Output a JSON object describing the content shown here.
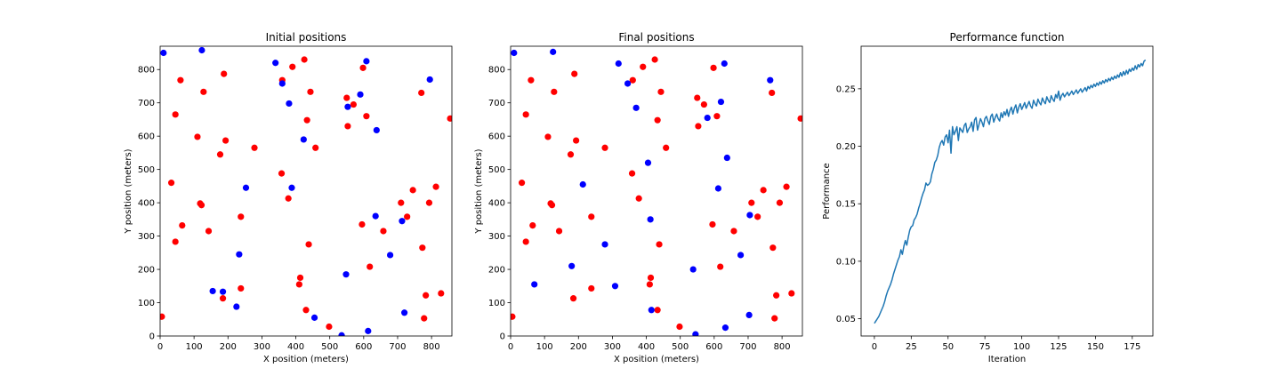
{
  "chart_data": [
    {
      "type": "scatter",
      "title": "Initial positions",
      "xlabel": "X position (meters)",
      "ylabel": "Y position (meters)",
      "xlim": [
        0,
        860
      ],
      "ylim": [
        0,
        870
      ],
      "xticks": [
        0,
        100,
        200,
        300,
        400,
        500,
        600,
        700,
        800
      ],
      "yticks": [
        0,
        100,
        200,
        300,
        400,
        500,
        600,
        700,
        800
      ],
      "grid": false,
      "series": [
        {
          "color": "#ff0000",
          "points": [
            [
              5,
              58
            ],
            [
              33,
              460
            ],
            [
              45,
              283
            ],
            [
              45,
              665
            ],
            [
              60,
              768
            ],
            [
              65,
              332
            ],
            [
              110,
              598
            ],
            [
              118,
              398
            ],
            [
              122,
              393
            ],
            [
              128,
              733
            ],
            [
              143,
              315
            ],
            [
              177,
              545
            ],
            [
              185,
              113
            ],
            [
              188,
              787
            ],
            [
              193,
              587
            ],
            [
              238,
              358
            ],
            [
              238,
              143
            ],
            [
              278,
              565
            ],
            [
              358,
              488
            ],
            [
              360,
              768
            ],
            [
              378,
              413
            ],
            [
              390,
              808
            ],
            [
              410,
              155
            ],
            [
              413,
              175
            ],
            [
              425,
              830
            ],
            [
              430,
              78
            ],
            [
              433,
              648
            ],
            [
              438,
              275
            ],
            [
              443,
              733
            ],
            [
              458,
              565
            ],
            [
              498,
              28
            ],
            [
              550,
              715
            ],
            [
              553,
              630
            ],
            [
              570,
              695
            ],
            [
              595,
              335
            ],
            [
              598,
              805
            ],
            [
              608,
              660
            ],
            [
              618,
              208
            ],
            [
              658,
              315
            ],
            [
              710,
              400
            ],
            [
              728,
              358
            ],
            [
              745,
              438
            ],
            [
              770,
              730
            ],
            [
              773,
              265
            ],
            [
              778,
              53
            ],
            [
              783,
              122
            ],
            [
              793,
              400
            ],
            [
              813,
              448
            ],
            [
              828,
              128
            ],
            [
              855,
              653
            ]
          ]
        },
        {
          "color": "#0000ff",
          "points": [
            [
              10,
              850
            ],
            [
              123,
              858
            ],
            [
              155,
              135
            ],
            [
              185,
              133
            ],
            [
              225,
              88
            ],
            [
              233,
              245
            ],
            [
              253,
              445
            ],
            [
              340,
              820
            ],
            [
              360,
              758
            ],
            [
              380,
              698
            ],
            [
              388,
              445
            ],
            [
              423,
              590
            ],
            [
              455,
              55
            ],
            [
              535,
              2
            ],
            [
              548,
              185
            ],
            [
              553,
              688
            ],
            [
              590,
              725
            ],
            [
              608,
              825
            ],
            [
              613,
              15
            ],
            [
              635,
              360
            ],
            [
              638,
              618
            ],
            [
              678,
              243
            ],
            [
              713,
              345
            ],
            [
              720,
              70
            ],
            [
              795,
              770
            ]
          ]
        }
      ]
    },
    {
      "type": "scatter",
      "title": "Final positions",
      "xlabel": "X position (meters)",
      "ylabel": "Y position (meters)",
      "xlim": [
        0,
        860
      ],
      "ylim": [
        0,
        870
      ],
      "xticks": [
        0,
        100,
        200,
        300,
        400,
        500,
        600,
        700,
        800
      ],
      "yticks": [
        0,
        100,
        200,
        300,
        400,
        500,
        600,
        700,
        800
      ],
      "grid": false,
      "series": [
        {
          "color": "#ff0000",
          "points": [
            [
              5,
              58
            ],
            [
              33,
              460
            ],
            [
              45,
              283
            ],
            [
              45,
              665
            ],
            [
              60,
              768
            ],
            [
              65,
              332
            ],
            [
              110,
              598
            ],
            [
              118,
              398
            ],
            [
              122,
              393
            ],
            [
              128,
              733
            ],
            [
              143,
              315
            ],
            [
              177,
              545
            ],
            [
              185,
              113
            ],
            [
              188,
              787
            ],
            [
              193,
              587
            ],
            [
              238,
              358
            ],
            [
              238,
              143
            ],
            [
              278,
              565
            ],
            [
              358,
              488
            ],
            [
              360,
              768
            ],
            [
              378,
              413
            ],
            [
              390,
              808
            ],
            [
              410,
              155
            ],
            [
              413,
              175
            ],
            [
              425,
              830
            ],
            [
              433,
              648
            ],
            [
              438,
              275
            ],
            [
              433,
              78
            ],
            [
              443,
              733
            ],
            [
              458,
              565
            ],
            [
              498,
              28
            ],
            [
              550,
              715
            ],
            [
              553,
              630
            ],
            [
              570,
              695
            ],
            [
              595,
              335
            ],
            [
              598,
              805
            ],
            [
              608,
              660
            ],
            [
              618,
              208
            ],
            [
              658,
              315
            ],
            [
              710,
              400
            ],
            [
              728,
              358
            ],
            [
              745,
              438
            ],
            [
              770,
              730
            ],
            [
              773,
              265
            ],
            [
              778,
              53
            ],
            [
              783,
              122
            ],
            [
              793,
              400
            ],
            [
              813,
              448
            ],
            [
              828,
              128
            ],
            [
              855,
              653
            ]
          ]
        },
        {
          "color": "#0000ff",
          "points": [
            [
              10,
              850
            ],
            [
              125,
              853
            ],
            [
              70,
              155
            ],
            [
              180,
              210
            ],
            [
              213,
              455
            ],
            [
              278,
              275
            ],
            [
              308,
              150
            ],
            [
              318,
              818
            ],
            [
              345,
              758
            ],
            [
              370,
              685
            ],
            [
              405,
              520
            ],
            [
              412,
              350
            ],
            [
              415,
              78
            ],
            [
              538,
              200
            ],
            [
              545,
              5
            ],
            [
              580,
              655
            ],
            [
              612,
              443
            ],
            [
              620,
              703
            ],
            [
              630,
              818
            ],
            [
              633,
              25
            ],
            [
              638,
              535
            ],
            [
              678,
              243
            ],
            [
              705,
              363
            ],
            [
              703,
              63
            ],
            [
              765,
              768
            ]
          ]
        }
      ]
    },
    {
      "type": "line",
      "title": "Performance function",
      "xlabel": "Iteration",
      "ylabel": "Performance",
      "xlim": [
        -9,
        189
      ],
      "ylim": [
        0.035,
        0.287
      ],
      "xticks": [
        0,
        25,
        50,
        75,
        100,
        125,
        150,
        175
      ],
      "yticks": [
        0.05,
        0.1,
        0.15,
        0.2,
        0.25
      ],
      "ytick_labels": [
        "0.05",
        "0.10",
        "0.15",
        "0.20",
        "0.25"
      ],
      "grid": false,
      "series": [
        {
          "color": "#1f77b4",
          "x_start": 0,
          "x_step": 1,
          "values": [
            0.046,
            0.048,
            0.05,
            0.052,
            0.055,
            0.058,
            0.061,
            0.065,
            0.07,
            0.074,
            0.077,
            0.08,
            0.084,
            0.089,
            0.093,
            0.097,
            0.101,
            0.104,
            0.11,
            0.106,
            0.113,
            0.118,
            0.114,
            0.121,
            0.127,
            0.13,
            0.131,
            0.136,
            0.138,
            0.141,
            0.146,
            0.15,
            0.155,
            0.159,
            0.162,
            0.168,
            0.166,
            0.167,
            0.169,
            0.176,
            0.18,
            0.186,
            0.188,
            0.192,
            0.199,
            0.203,
            0.205,
            0.201,
            0.208,
            0.21,
            0.203,
            0.214,
            0.194,
            0.217,
            0.21,
            0.213,
            0.217,
            0.205,
            0.216,
            0.214,
            0.212,
            0.218,
            0.22,
            0.212,
            0.215,
            0.217,
            0.221,
            0.213,
            0.223,
            0.225,
            0.214,
            0.219,
            0.224,
            0.221,
            0.217,
            0.224,
            0.226,
            0.222,
            0.219,
            0.226,
            0.228,
            0.221,
            0.225,
            0.228,
            0.224,
            0.222,
            0.229,
            0.225,
            0.23,
            0.227,
            0.232,
            0.226,
            0.231,
            0.234,
            0.228,
            0.233,
            0.236,
            0.229,
            0.234,
            0.237,
            0.232,
            0.235,
            0.238,
            0.233,
            0.236,
            0.239,
            0.235,
            0.233,
            0.24,
            0.237,
            0.235,
            0.241,
            0.238,
            0.236,
            0.242,
            0.239,
            0.237,
            0.243,
            0.24,
            0.238,
            0.244,
            0.241,
            0.239,
            0.245,
            0.242,
            0.248,
            0.24,
            0.244,
            0.246,
            0.243,
            0.245,
            0.247,
            0.244,
            0.246,
            0.248,
            0.245,
            0.247,
            0.249,
            0.246,
            0.248,
            0.25,
            0.247,
            0.249,
            0.251,
            0.248,
            0.252,
            0.25,
            0.253,
            0.251,
            0.254,
            0.252,
            0.255,
            0.253,
            0.256,
            0.254,
            0.257,
            0.255,
            0.258,
            0.256,
            0.259,
            0.257,
            0.26,
            0.258,
            0.261,
            0.259,
            0.262,
            0.26,
            0.264,
            0.261,
            0.265,
            0.262,
            0.266,
            0.263,
            0.267,
            0.265,
            0.268,
            0.266,
            0.27,
            0.267,
            0.271,
            0.269,
            0.272,
            0.27,
            0.274,
            0.275
          ]
        }
      ]
    }
  ]
}
